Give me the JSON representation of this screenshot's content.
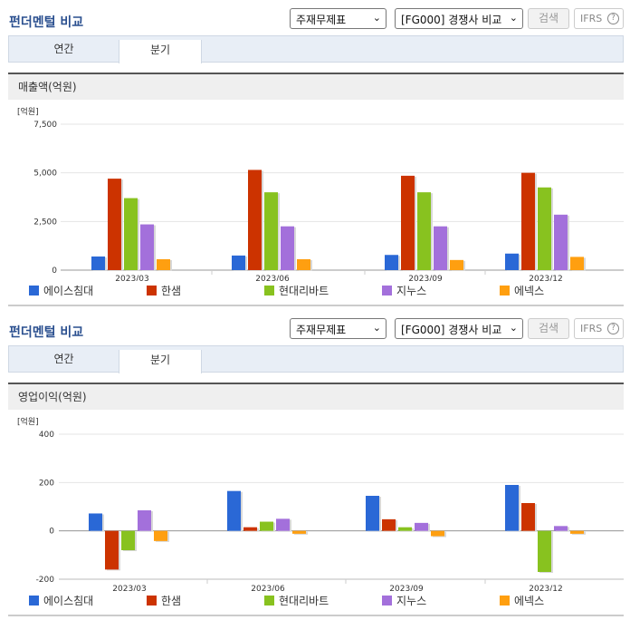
{
  "colors": {
    "s0": "#2a68d6",
    "s1": "#cc3300",
    "s2": "#88c21f",
    "s3": "#a370db",
    "s4": "#ff9f10"
  },
  "sections": [
    {
      "title": "펀더멘털 비교",
      "select_a": "주재무제표",
      "select_b": "[FG000] 경쟁사 비교",
      "search_label": "검색",
      "ifrs_label": "IFRS",
      "ifrs_help": "?",
      "tabs": [
        "연간",
        "분기"
      ],
      "chart_title": "매출액(억원)"
    },
    {
      "title": "펀더멘털 비교",
      "select_a": "주재무제표",
      "select_b": "[FG000] 경쟁사 비교",
      "search_label": "검색",
      "ifrs_label": "IFRS",
      "ifrs_help": "?",
      "tabs": [
        "연간",
        "분기"
      ],
      "chart_title": "영업이익(억원)"
    }
  ],
  "chart_data": [
    {
      "type": "bar",
      "title": "매출액(억원)",
      "unit_label": "[억원]",
      "categories": [
        "2023/03",
        "2023/06",
        "2023/09",
        "2023/12"
      ],
      "ylim": [
        0,
        7500
      ],
      "yticks": [
        0,
        2500,
        5000,
        7500
      ],
      "ytick_labels": [
        "0",
        "2,500",
        "5,000",
        "7,500"
      ],
      "series": [
        {
          "name": "에이스침대",
          "values": [
            700,
            750,
            780,
            850
          ]
        },
        {
          "name": "한샘",
          "values": [
            4700,
            5150,
            4850,
            5000
          ]
        },
        {
          "name": "현대리바트",
          "values": [
            3700,
            4000,
            4000,
            4250
          ]
        },
        {
          "name": "지누스",
          "values": [
            2350,
            2250,
            2250,
            2850
          ]
        },
        {
          "name": "에넥스",
          "values": [
            560,
            560,
            520,
            680
          ]
        }
      ]
    },
    {
      "type": "bar",
      "title": "영업이익(억원)",
      "unit_label": "[억원]",
      "categories": [
        "2023/03",
        "2023/06",
        "2023/09",
        "2023/12"
      ],
      "ylim": [
        -200,
        400
      ],
      "yticks": [
        -200,
        0,
        200,
        400
      ],
      "ytick_labels": [
        "-200",
        "0",
        "200",
        "400"
      ],
      "series": [
        {
          "name": "에이스침대",
          "values": [
            72,
            165,
            145,
            190
          ]
        },
        {
          "name": "한샘",
          "values": [
            -160,
            15,
            48,
            115
          ]
        },
        {
          "name": "현대리바트",
          "values": [
            -80,
            38,
            15,
            -170
          ]
        },
        {
          "name": "지누스",
          "values": [
            85,
            50,
            33,
            20
          ]
        },
        {
          "name": "에넥스",
          "values": [
            -42,
            -12,
            -22,
            -12
          ]
        }
      ]
    }
  ]
}
